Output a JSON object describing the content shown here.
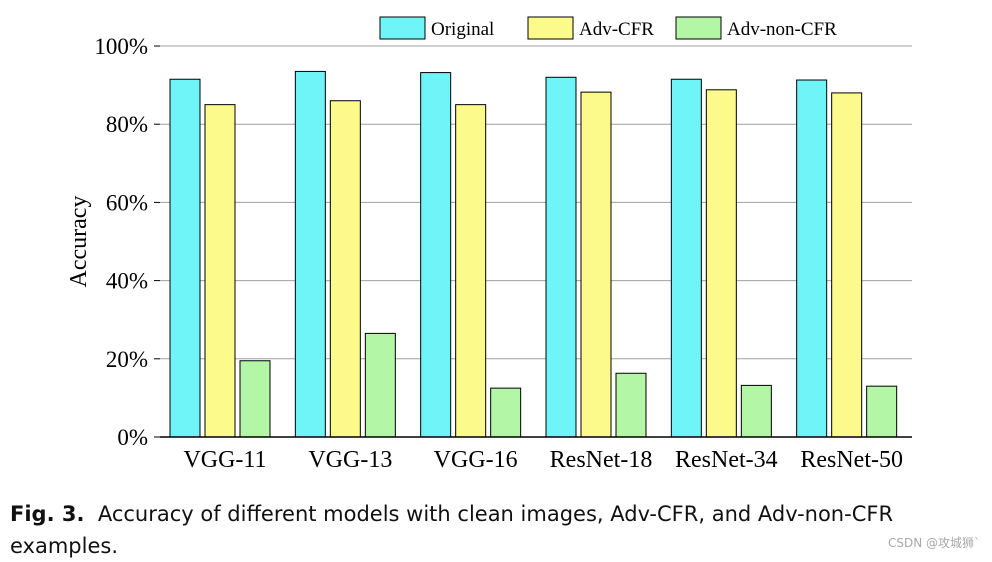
{
  "chart_data": {
    "type": "bar",
    "title": "",
    "xlabel": "",
    "ylabel": "Accuracy",
    "ylim": [
      0,
      100
    ],
    "yticks": [
      "0%",
      "20%",
      "40%",
      "60%",
      "80%",
      "100%"
    ],
    "categories": [
      "VGG-11",
      "VGG-13",
      "VGG-16",
      "ResNet-18",
      "ResNet-34",
      "ResNet-50"
    ],
    "series": [
      {
        "name": "Original",
        "color": "#6ff4f8",
        "values": [
          91.5,
          93.5,
          93.2,
          92.0,
          91.5,
          91.3
        ]
      },
      {
        "name": "Adv-CFR",
        "color": "#fbfa8a",
        "values": [
          85.0,
          86.0,
          85.0,
          88.2,
          88.8,
          88.0
        ]
      },
      {
        "name": "Adv-non-CFR",
        "color": "#b3f6a5",
        "values": [
          19.5,
          26.5,
          12.5,
          16.3,
          13.2,
          13.0
        ]
      }
    ],
    "legend": "top-right",
    "grid": "horizontal"
  },
  "caption": {
    "label": "Fig. 3.",
    "text": "Accuracy of different models with clean images, Adv-CFR, and Adv-non-CFR examples."
  },
  "watermark": "CSDN @攻城狮`"
}
